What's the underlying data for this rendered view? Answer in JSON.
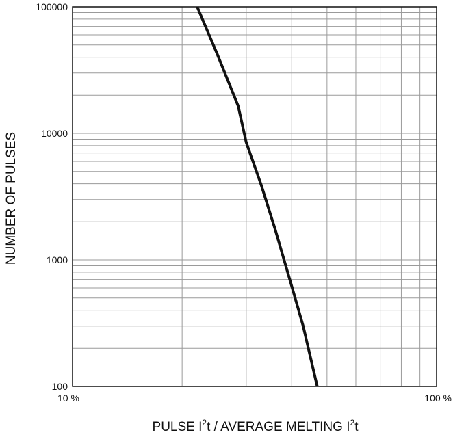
{
  "chart_data": {
    "type": "line",
    "title": "",
    "xlabel": "PULSE I²t / AVERAGE MELTING I²t",
    "xlabel_parts": {
      "a": "PULSE I",
      "sup1": "2",
      "b": "t / AVERAGE MELTING I",
      "sup2": "2",
      "c": "t"
    },
    "ylabel": "NUMBER OF PULSES",
    "x_scale": "log",
    "y_scale": "log",
    "xlim": [
      10,
      100
    ],
    "ylim": [
      100,
      100000
    ],
    "x_tick_labels": [
      "10 %",
      "100 %"
    ],
    "y_tick_labels": [
      "100",
      "1000",
      "10000",
      "100000"
    ],
    "grid": true,
    "series": [
      {
        "x": [
          22.0,
          25.0,
          28.5,
          30.0,
          33.0,
          36.0,
          40.0,
          43.0,
          47.0
        ],
        "y": [
          100000,
          42000,
          16500,
          8500,
          3900,
          1750,
          620,
          300,
          100
        ]
      }
    ],
    "colors": {
      "line": "#111111",
      "grid": "#9a9a9a",
      "frame": "#111111"
    }
  }
}
